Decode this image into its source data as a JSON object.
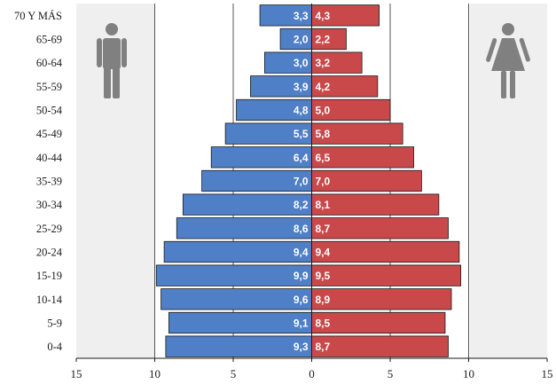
{
  "chart_data": {
    "type": "bar",
    "orientation": "horizontal-butterfly",
    "categories": [
      "70 Y MÁS",
      "65-69",
      "60-64",
      "55-59",
      "50-54",
      "45-49",
      "40-44",
      "35-39",
      "30-34",
      "25-29",
      "20-24",
      "15-19",
      "10-14",
      "5-9",
      "0-4"
    ],
    "series": [
      {
        "values": [
          3.3,
          2.0,
          3.0,
          3.9,
          4.8,
          5.5,
          6.4,
          7.0,
          8.2,
          8.6,
          9.4,
          9.9,
          9.6,
          9.1,
          9.3
        ],
        "labels": [
          "3,3",
          "2,0",
          "3,0",
          "3,9",
          "4,8",
          "5,5",
          "6,4",
          "7,0",
          "8,2",
          "8,6",
          "9,4",
          "9,9",
          "9,6",
          "9,1",
          "9,3"
        ],
        "color": "#4f7fc6",
        "side": "left"
      },
      {
        "values": [
          4.3,
          2.2,
          3.2,
          4.2,
          5.0,
          5.8,
          6.5,
          7.0,
          8.1,
          8.7,
          9.4,
          9.5,
          8.9,
          8.5,
          8.7
        ],
        "labels": [
          "4,3",
          "2,2",
          "3,2",
          "4,2",
          "5,0",
          "5,8",
          "6,5",
          "7,0",
          "8,1",
          "8,7",
          "9,4",
          "9,5",
          "8,9",
          "8,5",
          "8,7"
        ],
        "color": "#c9494b",
        "side": "right"
      }
    ],
    "x_ticks": [
      15,
      10,
      5,
      0,
      5,
      10,
      15
    ],
    "xlim": [
      -15,
      15
    ],
    "grid": true,
    "title": "",
    "xlabel": "",
    "ylabel": "",
    "icons": {
      "left": "male-figure-icon",
      "right": "female-figure-icon"
    },
    "colors": {
      "plot_background": "#efefef",
      "center_band": "#ffffff",
      "gridline": "#555555"
    }
  }
}
